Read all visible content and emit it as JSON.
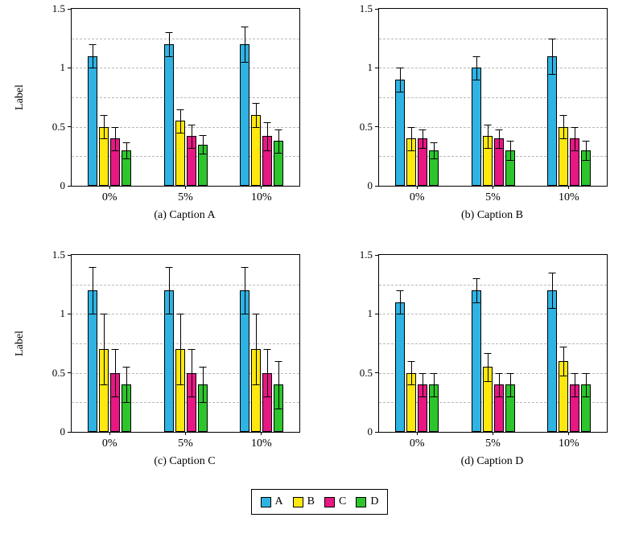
{
  "axis": {
    "ytick_labels": [
      "0",
      "0.5",
      "1",
      "1.5"
    ],
    "grid_values": [
      0.25,
      0.5,
      0.75,
      1.0,
      1.25
    ],
    "grid_color": "#b9b9b9"
  },
  "legend": {
    "entries": [
      {
        "label": "A",
        "color": "#2fb3e3"
      },
      {
        "label": "B",
        "color": "#ffe810"
      },
      {
        "label": "C",
        "color": "#e81784"
      },
      {
        "label": "D",
        "color": "#2cc52c"
      }
    ]
  },
  "chart_data": [
    {
      "type": "bar",
      "caption": "(a) Caption A",
      "ylabel": "Label",
      "categories": [
        "0%",
        "5%",
        "10%"
      ],
      "ylim": [
        0,
        1.5
      ],
      "yticks": [
        0,
        0.5,
        1,
        1.5
      ],
      "grid": "dashed",
      "legend_position": "bottom-shared",
      "series": [
        {
          "name": "A",
          "values": [
            1.1,
            1.2,
            1.2
          ],
          "errors": [
            0.1,
            0.1,
            0.15
          ]
        },
        {
          "name": "B",
          "values": [
            0.5,
            0.55,
            0.6
          ],
          "errors": [
            0.1,
            0.1,
            0.1
          ]
        },
        {
          "name": "C",
          "values": [
            0.4,
            0.42,
            0.42
          ],
          "errors": [
            0.1,
            0.1,
            0.12
          ]
        },
        {
          "name": "D",
          "values": [
            0.3,
            0.35,
            0.38
          ],
          "errors": [
            0.07,
            0.08,
            0.1
          ]
        }
      ]
    },
    {
      "type": "bar",
      "caption": "(b) Caption B",
      "ylabel": "",
      "categories": [
        "0%",
        "5%",
        "10%"
      ],
      "ylim": [
        0,
        1.5
      ],
      "yticks": [
        0,
        0.5,
        1,
        1.5
      ],
      "grid": "dashed",
      "legend_position": "bottom-shared",
      "series": [
        {
          "name": "A",
          "values": [
            0.9,
            1.0,
            1.1
          ],
          "errors": [
            0.1,
            0.1,
            0.15
          ]
        },
        {
          "name": "B",
          "values": [
            0.4,
            0.42,
            0.5
          ],
          "errors": [
            0.1,
            0.1,
            0.1
          ]
        },
        {
          "name": "C",
          "values": [
            0.4,
            0.4,
            0.4
          ],
          "errors": [
            0.08,
            0.08,
            0.1
          ]
        },
        {
          "name": "D",
          "values": [
            0.3,
            0.3,
            0.3
          ],
          "errors": [
            0.07,
            0.08,
            0.08
          ]
        }
      ]
    },
    {
      "type": "bar",
      "caption": "(c) Caption C",
      "ylabel": "Label",
      "categories": [
        "0%",
        "5%",
        "10%"
      ],
      "ylim": [
        0,
        1.5
      ],
      "yticks": [
        0,
        0.5,
        1,
        1.5
      ],
      "grid": "dashed",
      "legend_position": "bottom-shared",
      "series": [
        {
          "name": "A",
          "values": [
            1.2,
            1.2,
            1.2
          ],
          "errors": [
            0.2,
            0.2,
            0.2
          ]
        },
        {
          "name": "B",
          "values": [
            0.7,
            0.7,
            0.7
          ],
          "errors": [
            0.3,
            0.3,
            0.3
          ]
        },
        {
          "name": "C",
          "values": [
            0.5,
            0.5,
            0.5
          ],
          "errors": [
            0.2,
            0.2,
            0.2
          ]
        },
        {
          "name": "D",
          "values": [
            0.4,
            0.4,
            0.4
          ],
          "errors": [
            0.15,
            0.15,
            0.2
          ]
        }
      ]
    },
    {
      "type": "bar",
      "caption": "(d) Caption D",
      "ylabel": "",
      "categories": [
        "0%",
        "5%",
        "10%"
      ],
      "ylim": [
        0,
        1.5
      ],
      "yticks": [
        0,
        0.5,
        1,
        1.5
      ],
      "grid": "dashed",
      "legend_position": "bottom-shared",
      "series": [
        {
          "name": "A",
          "values": [
            1.1,
            1.2,
            1.2
          ],
          "errors": [
            0.1,
            0.1,
            0.15
          ]
        },
        {
          "name": "B",
          "values": [
            0.5,
            0.55,
            0.6
          ],
          "errors": [
            0.1,
            0.12,
            0.12
          ]
        },
        {
          "name": "C",
          "values": [
            0.4,
            0.4,
            0.4
          ],
          "errors": [
            0.1,
            0.1,
            0.1
          ]
        },
        {
          "name": "D",
          "values": [
            0.4,
            0.4,
            0.4
          ],
          "errors": [
            0.1,
            0.1,
            0.1
          ]
        }
      ]
    }
  ]
}
